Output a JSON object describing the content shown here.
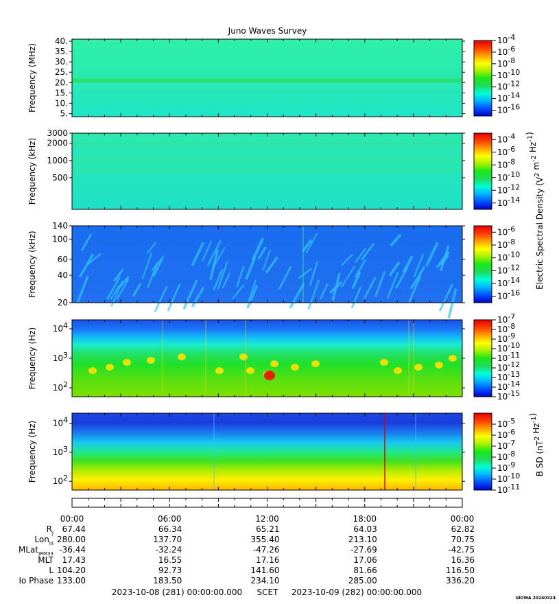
{
  "title": "Juno Waves Survey",
  "credit": "UIOWA 20240324",
  "time_footer": {
    "start": "2023-10-08 (281) 00:00:00.000",
    "label": "SCET",
    "end": "2023-10-09 (282) 00:00:00.000"
  },
  "colors": {
    "colormap": [
      "#0000c8",
      "#0050ff",
      "#00b4ff",
      "#00ffd8",
      "#1edc5a",
      "#18e818",
      "#a8f000",
      "#ffff00",
      "#ffa000",
      "#ff3c00",
      "#e60000"
    ]
  },
  "chart_data": [
    {
      "type": "heatmap",
      "ylabel": "Frequency (MHz)",
      "y_scale": "linear",
      "ylim": [
        3.5,
        41
      ],
      "yticks": [
        5,
        10,
        15,
        20,
        25,
        30,
        35,
        40
      ],
      "ytick_labels": [
        "5.",
        "10.",
        "15.",
        "20.",
        "25.",
        "30.",
        "35.",
        "40."
      ],
      "background_level": "10^-12",
      "features": [
        {
          "y_range": [
            20,
            22
          ],
          "level": "10^-11",
          "note": "constant band"
        }
      ],
      "colorbar": {
        "min_exp": -17,
        "max_exp": -4,
        "labels": [
          "10^-4",
          "10^-6",
          "10^-8",
          "10^-10",
          "10^-12",
          "10^-14",
          "10^-16"
        ],
        "label_exps": [
          -4,
          -6,
          -8,
          -10,
          -12,
          -14,
          -16
        ],
        "title": ""
      }
    },
    {
      "type": "heatmap",
      "ylabel": "Frequency (kHz)",
      "y_scale": "log",
      "ylim": [
        140,
        3000
      ],
      "yticks": [
        500,
        1000,
        2000,
        3000
      ],
      "ytick_labels": [
        "500",
        "1000",
        "2000",
        "3000"
      ],
      "background_level": "10^-12",
      "colorbar": {
        "min_exp": -15,
        "max_exp": -3,
        "labels": [
          "10^-4",
          "10^-6",
          "10^-8",
          "10^-10",
          "10^-12",
          "10^-14"
        ],
        "label_exps": [
          -4,
          -6,
          -8,
          -10,
          -12,
          -14
        ],
        "title": "Electric Spectral Density (V^2 m^-2 Hz^-1)"
      }
    },
    {
      "type": "heatmap",
      "ylabel": "Frequency (kHz)",
      "y_scale": "log",
      "ylim": [
        20,
        140
      ],
      "yticks": [
        20,
        40,
        60,
        100,
        140
      ],
      "ytick_labels": [
        "20",
        "40",
        "60",
        "100",
        "140"
      ],
      "background_level": "10^-13",
      "colorbar": {
        "min_exp": -17,
        "max_exp": -5,
        "labels": [
          "10^-6",
          "10^-8",
          "10^-10",
          "10^-12",
          "10^-14",
          "10^-16"
        ],
        "label_exps": [
          -6,
          -8,
          -10,
          -12,
          -14,
          -16
        ],
        "title": ""
      }
    },
    {
      "type": "heatmap",
      "ylabel": "Frequency (Hz)",
      "y_scale": "log",
      "ylim": [
        50,
        20000
      ],
      "yticks": [
        100,
        1000,
        10000
      ],
      "ytick_labels": [
        "10^2",
        "10^3",
        "10^4"
      ],
      "colorbar": {
        "min_exp": -15,
        "max_exp": -7,
        "labels": [
          "10^-7",
          "10^-8",
          "10^-9",
          "10^-10",
          "10^-11",
          "10^-12",
          "10^-13",
          "10^-14",
          "10^-15"
        ],
        "label_exps": [
          -7,
          -8,
          -9,
          -10,
          -11,
          -12,
          -13,
          -14,
          -15
        ],
        "title": ""
      }
    },
    {
      "type": "heatmap",
      "ylabel": "Frequency (Hz)",
      "y_scale": "log",
      "ylim": [
        50,
        22000
      ],
      "yticks": [
        100,
        1000,
        10000
      ],
      "ytick_labels": [
        "10^2",
        "10^3",
        "10^4"
      ],
      "colorbar": {
        "min_exp": -11,
        "max_exp": -4,
        "labels": [
          "10^-5",
          "10^-6",
          "10^-7",
          "10^-8",
          "10^-9",
          "10^-10",
          "10^-11"
        ],
        "label_exps": [
          -5,
          -6,
          -7,
          -8,
          -9,
          -10,
          -11
        ],
        "title": "B SD (nT^2 Hz^-1)"
      }
    }
  ],
  "time_axis": {
    "tick_labels": [
      "00:00",
      "06:00",
      "12:00",
      "18:00",
      "00:00"
    ]
  },
  "ephemeris": {
    "rows": [
      {
        "label": "R",
        "sub": "J",
        "values": [
          "67.44",
          "66.34",
          "65.21",
          "64.03",
          "62.82"
        ]
      },
      {
        "label": "Lon",
        "sub": "III",
        "values": [
          "280.00",
          "137.70",
          "355.40",
          "213.10",
          "70.75"
        ]
      },
      {
        "label": "MLat",
        "sub": "JRM33",
        "values": [
          "-36.44",
          "-32.24",
          "-47.26",
          "-27.69",
          "-42.75"
        ]
      },
      {
        "label": "MLT",
        "sub": "",
        "values": [
          "17.43",
          "16.55",
          "17.16",
          "17.06",
          "16.36"
        ]
      },
      {
        "label": "L",
        "sub": "",
        "values": [
          "104.20",
          "92.73",
          "141.60",
          "81.66",
          "116.50"
        ]
      },
      {
        "label": "Io Phase",
        "sub": "",
        "values": [
          "133.00",
          "183.50",
          "234.10",
          "285.00",
          "336.20"
        ]
      }
    ]
  }
}
